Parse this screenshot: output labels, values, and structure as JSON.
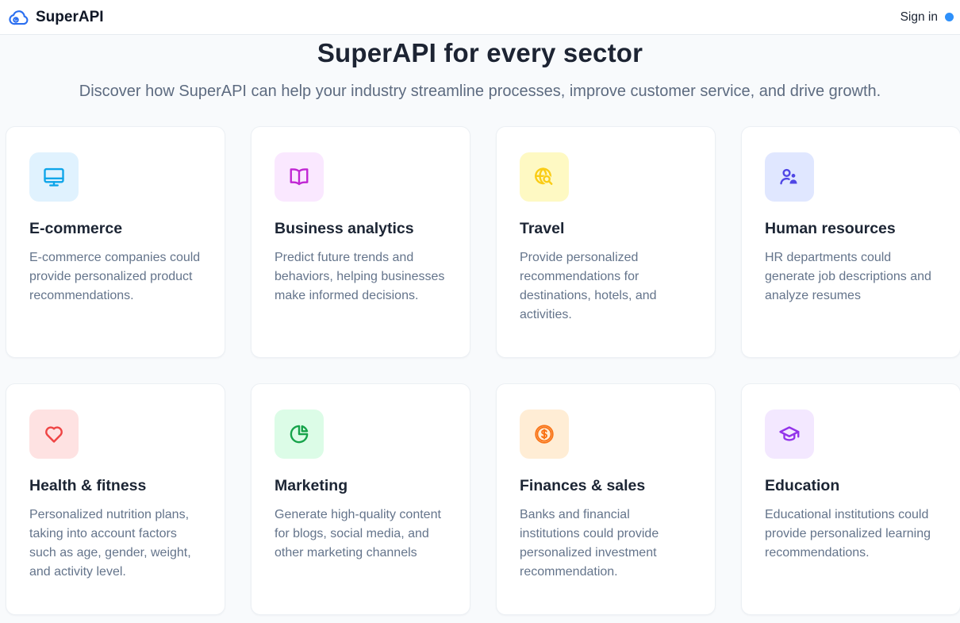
{
  "header": {
    "brand": "SuperAPI",
    "sign_in_label": "Sign in",
    "logo_icon": "cloud-logo-icon",
    "logo_color": "#2b6ff0",
    "accent_dot_color": "#2e90fa"
  },
  "hero": {
    "title": "SuperAPI for every sector",
    "subtitle": "Discover how SuperAPI can help your industry streamline processes, improve customer service, and drive growth."
  },
  "cards": [
    {
      "title": "E-commerce",
      "description": "E-commerce companies could provide personalized product recommendations.",
      "icon": "monitor-icon",
      "icon_color": "#0ea5e9",
      "icon_bg": "#e0f2fe"
    },
    {
      "title": "Business analytics",
      "description": "Predict future trends and behaviors, helping businesses make informed decisions.",
      "icon": "open-book-icon",
      "icon_color": "#c026d3",
      "icon_bg": "#fae8ff"
    },
    {
      "title": "Travel",
      "description": "Provide personalized recommendations for destinations, hotels, and activities.",
      "icon": "globe-search-icon",
      "icon_color": "#facc15",
      "icon_bg": "#fef9c3"
    },
    {
      "title": "Human resources",
      "description": "HR departments could generate job descriptions and analyze resumes",
      "icon": "user-add-icon",
      "icon_color": "#4f46e5",
      "icon_bg": "#e0e7ff"
    },
    {
      "title": "Health & fitness",
      "description": "Personalized nutrition plans, taking into account factors such as age, gender, weight, and activity level.",
      "icon": "heart-icon",
      "icon_color": "#ef4444",
      "icon_bg": "#fee2e2"
    },
    {
      "title": "Marketing",
      "description": "Generate high-quality content for blogs, social media, and other marketing channels",
      "icon": "pie-chart-icon",
      "icon_color": "#16a34a",
      "icon_bg": "#dcfce7"
    },
    {
      "title": "Finances & sales",
      "description": "Banks and financial institutions could provide personalized investment recommendation.",
      "icon": "dollar-coin-icon",
      "icon_color": "#f97316",
      "icon_bg": "#ffedd5"
    },
    {
      "title": "Education",
      "description": "Educational institutions could provide personalized learning recommendations.",
      "icon": "graduation-cap-icon",
      "icon_color": "#9333ea",
      "icon_bg": "#f3e8ff"
    }
  ]
}
